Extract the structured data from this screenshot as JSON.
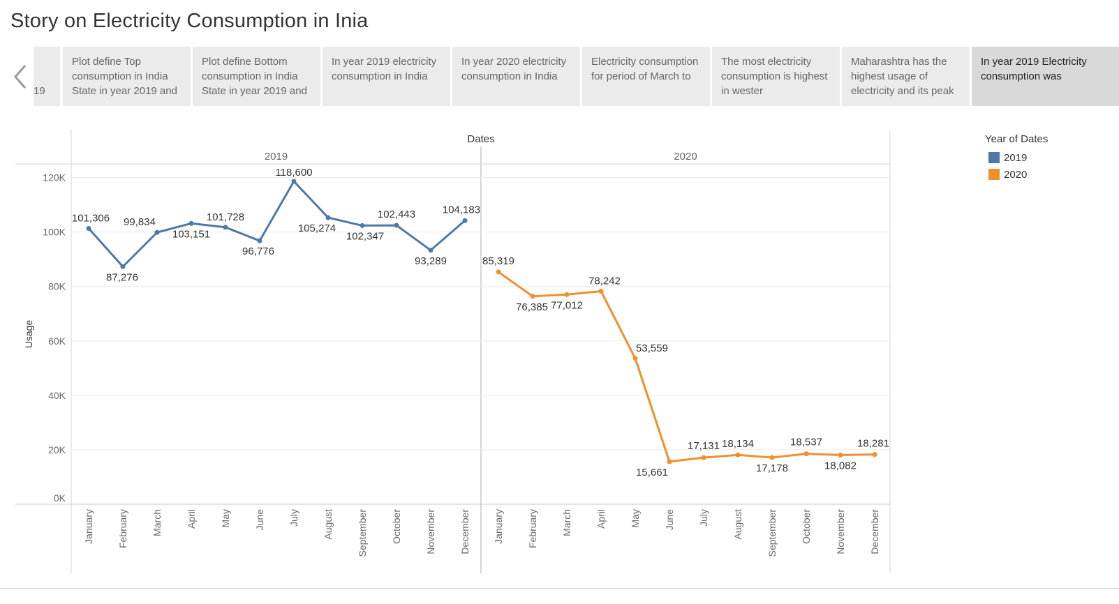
{
  "title": "Story on Electricity Consumption in Inia",
  "story": {
    "prev_clipped": "19",
    "points": [
      {
        "text": "Plot define Top consumption in India State in year 2019 and"
      },
      {
        "text": "Plot define Bottom consumption in India State in year 2019 and"
      },
      {
        "text": "In year 2019 electricity consumption in India"
      },
      {
        "text": "In year 2020 electricity consumption in India"
      },
      {
        "text": "Electricity consumption for period of March to"
      },
      {
        "text": "The most electricity consumption  is highest in wester"
      },
      {
        "text": "Maharashtra has the highest usage of electricity and its peak"
      },
      {
        "text": "In year 2019 Electricity consumption was",
        "active": true
      }
    ]
  },
  "legend": {
    "title": "Year of Dates",
    "items": [
      {
        "label": "2019",
        "color": "#4e79a7"
      },
      {
        "label": "2020",
        "color": "#f28e2b"
      }
    ]
  },
  "chart_data": {
    "type": "line",
    "title": "",
    "column_header": "Dates",
    "panels": [
      "2019",
      "2020"
    ],
    "categories": [
      "January",
      "February",
      "March",
      "April",
      "May",
      "June",
      "July",
      "August",
      "September",
      "October",
      "November",
      "December"
    ],
    "ylabel": "Usage",
    "ylim": [
      0,
      125000
    ],
    "yticks": [
      0,
      20000,
      40000,
      60000,
      80000,
      100000,
      120000
    ],
    "ytick_labels": [
      "0K",
      "20K",
      "40K",
      "60K",
      "80K",
      "100K",
      "120K"
    ],
    "grid": true,
    "legend_position": "right",
    "series": [
      {
        "name": "2019",
        "color": "#4e79a7",
        "values": [
          101306,
          87276,
          99834,
          103151,
          101728,
          96776,
          118600,
          105274,
          102347,
          102443,
          93289,
          104183
        ],
        "labels": [
          "101,306",
          "87,276",
          "99,834",
          "103,151",
          "101,728",
          "96,776",
          "118,600",
          "105,274",
          "102,347",
          "102,443",
          "93,289",
          "104,183"
        ]
      },
      {
        "name": "2020",
        "color": "#f28e2b",
        "values": [
          85319,
          76385,
          77012,
          78242,
          53559,
          15661,
          17131,
          18134,
          17178,
          18537,
          18082,
          18281
        ],
        "labels": [
          "85,319",
          "76,385",
          "77,012",
          "78,242",
          "53,559",
          "15,661",
          "17,131",
          "18,134",
          "17,178",
          "18,537",
          "18,082",
          "18,281"
        ]
      }
    ]
  }
}
